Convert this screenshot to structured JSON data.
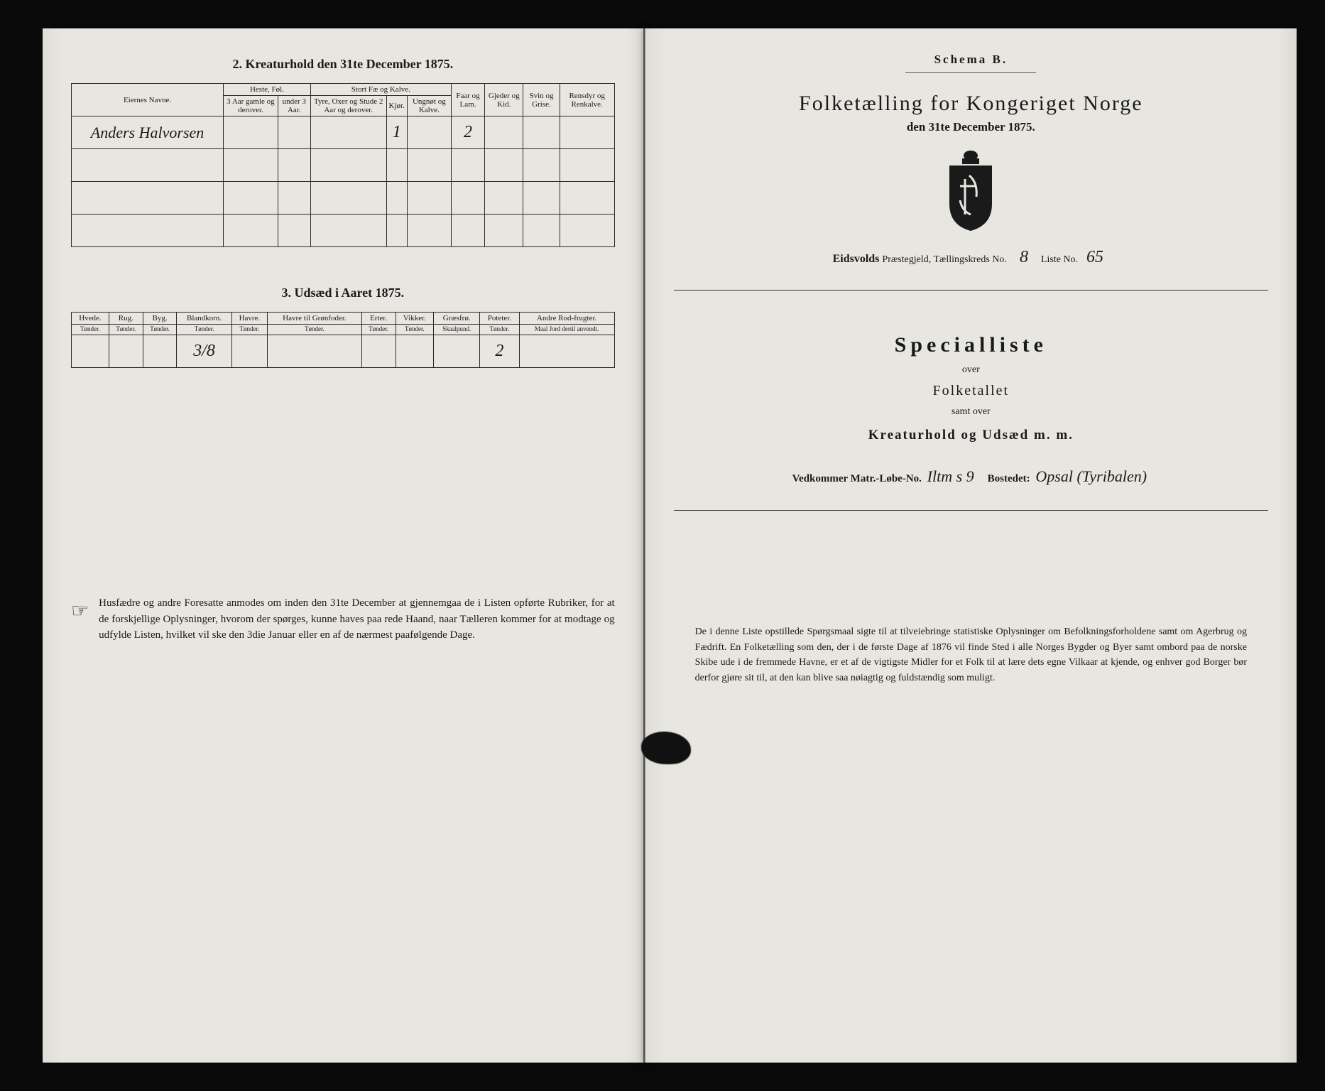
{
  "left": {
    "section2_title": "2.  Kreaturhold den 31te December 1875.",
    "t2": {
      "owner_header": "Eiernes Navne.",
      "groups": {
        "heste": "Heste, Føl.",
        "stort": "Stort Fæ og Kalve."
      },
      "cols": {
        "heste1": "3 Aar gamle og derover.",
        "heste2": "under 3 Aar.",
        "stort1": "Tyre, Oxer og Stude 2 Aar og derover.",
        "stort2": "Kjør.",
        "stort3": "Ungnøt og Kalve.",
        "faar": "Faar og Lam.",
        "gjed": "Gjeder og Kid.",
        "svin": "Svin og Grise.",
        "rens": "Rensdyr og Renkalve."
      },
      "rows": [
        {
          "owner": "Anders Halvorsen",
          "heste1": "",
          "heste2": "",
          "stort1": "",
          "stort2": "1",
          "stort3": "",
          "faar": "2",
          "gjed": "",
          "svin": "",
          "rens": ""
        },
        {
          "owner": "",
          "heste1": "",
          "heste2": "",
          "stort1": "",
          "stort2": "",
          "stort3": "",
          "faar": "",
          "gjed": "",
          "svin": "",
          "rens": ""
        },
        {
          "owner": "",
          "heste1": "",
          "heste2": "",
          "stort1": "",
          "stort2": "",
          "stort3": "",
          "faar": "",
          "gjed": "",
          "svin": "",
          "rens": ""
        },
        {
          "owner": "",
          "heste1": "",
          "heste2": "",
          "stort1": "",
          "stort2": "",
          "stort3": "",
          "faar": "",
          "gjed": "",
          "svin": "",
          "rens": ""
        }
      ]
    },
    "section3_title": "3.  Udsæd i Aaret 1875.",
    "t3": {
      "cols": {
        "hvede": "Hvede.",
        "hvede_u": "Tønder.",
        "rug": "Rug.",
        "rug_u": "Tønder.",
        "byg": "Byg.",
        "byg_u": "Tønder.",
        "bland": "Blandkorn.",
        "bland_u": "Tønder.",
        "havre": "Havre.",
        "havre_u": "Tønder.",
        "havreg": "Havre til Grønfoder.",
        "havreg_u": "Tønder.",
        "erter": "Erter.",
        "erter_u": "Tønder.",
        "vikker": "Vikker.",
        "vikker_u": "Tønder.",
        "graes": "Græsfrø.",
        "graes_u": "Skaalpund.",
        "pot": "Poteter.",
        "pot_u": "Tønder.",
        "andre": "Andre Rod-frugter.",
        "andre_u": "Maal Jord dertil anvendt."
      },
      "row": {
        "hvede": "",
        "rug": "",
        "byg": "",
        "bland": "3/8",
        "havre": "",
        "havreg": "",
        "erter": "",
        "vikker": "",
        "graes": "",
        "pot": "2",
        "andre": ""
      }
    },
    "instruction": "Husfædre og andre Foresatte anmodes om inden den 31te December at gjennemgaa de i Listen opførte Rubriker, for at de forskjellige Oplysninger, hvorom der spørges, kunne haves paa rede Haand, naar Tælleren kommer for at modtage og udfylde Listen, hvilket vil ske den 3die Januar eller en af de nærmest paafølgende Dage."
  },
  "right": {
    "schema": "Schema B.",
    "title": "Folketælling for Kongeriget Norge",
    "date": "den 31te December 1875.",
    "parish_prefix": "Eidsvolds",
    "parish_label": "Præstegjeld, Tællingskreds No.",
    "kreds_no": "8",
    "liste_label": "Liste No.",
    "liste_no": "65",
    "spec_title": "Specialliste",
    "spec_over": "over",
    "spec_folket": "Folketallet",
    "spec_samt": "samt over",
    "spec_kreat": "Kreaturhold og Udsæd m. m.",
    "vedk_label1": "Vedkommer Matr.-Løbe-No.",
    "matr_no": "Iltm s 9",
    "vedk_label2": "Bostedet:",
    "bosted": "Opsal (Tyribalen)",
    "bottom": "De i denne Liste opstillede Spørgsmaal sigte til at tilveiebringe statistiske Oplysninger om Befolkningsforholdene samt om Agerbrug og Fædrift. En Folketælling som den, der i de første Dage af 1876 vil finde Sted i alle Norges Bygder og Byer samt ombord paa de norske Skibe ude i de fremmede Havne, er et af de vigtigste Midler for et Folk til at lære dets egne Vilkaar at kjende, og enhver god Borger bør derfor gjøre sit til, at den kan blive saa nøiagtig og fuldstændig som muligt."
  },
  "style": {
    "page_bg": "#e8e6e0",
    "border": "#2a2a2a",
    "body_bg": "#0a0a0a",
    "hand_font": "Brush Script MT",
    "serif_font": "Georgia"
  }
}
